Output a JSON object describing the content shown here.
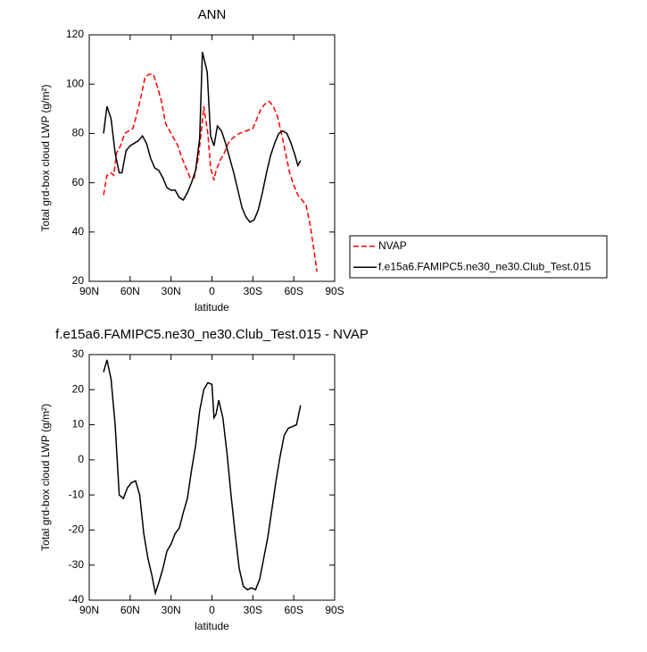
{
  "chart_data": [
    {
      "type": "line",
      "title": "ANN",
      "xlabel": "latitude",
      "ylabel": "Total grd-box cloud LWP (g/m²)",
      "xlim": [
        90,
        -90
      ],
      "xticks": [
        {
          "value": 90,
          "label": "90N"
        },
        {
          "value": 60,
          "label": "60N"
        },
        {
          "value": 30,
          "label": "30N"
        },
        0,
        {
          "value": -30,
          "label": "30S"
        },
        {
          "value": -60,
          "label": "60S"
        },
        {
          "value": -90,
          "label": "90S"
        }
      ],
      "ylim": [
        20,
        120
      ],
      "yticks": [
        20,
        40,
        60,
        80,
        100,
        120
      ],
      "legend": "right",
      "series": [
        {
          "name": "NVAP",
          "color": "#ff0000",
          "line_style": "dashed",
          "x": [
            79.5,
            77,
            74,
            72,
            70,
            67,
            64,
            61,
            58,
            55,
            52,
            49,
            46,
            43,
            40,
            37,
            34,
            31,
            28,
            25,
            22,
            19,
            16,
            13,
            10,
            7,
            6,
            3,
            1,
            -1.5,
            -3,
            -6,
            -9,
            -12,
            -15,
            -20,
            -25,
            -30,
            -33,
            -36,
            -39,
            -42,
            -45,
            -48,
            -51,
            -54,
            -57,
            -60,
            -63,
            -66,
            -69,
            -72,
            -75,
            -77
          ],
          "values": [
            55,
            63,
            64,
            63,
            72,
            75,
            80,
            81,
            82,
            88,
            95,
            103,
            104,
            104,
            99,
            93,
            84,
            81,
            78,
            75,
            70,
            66,
            62,
            62,
            70,
            85,
            91,
            80,
            66,
            61,
            65,
            69,
            72,
            76,
            78,
            80,
            81,
            82,
            86,
            90,
            92,
            93,
            91,
            87,
            80,
            72,
            64,
            59,
            55,
            53,
            51,
            43,
            32,
            24
          ]
        },
        {
          "name": "f.e15a6.FAMIPC5.ne30_ne30.Club_Test.015",
          "color": "#000000",
          "line_style": "solid",
          "x": [
            79.5,
            77,
            74,
            71,
            68,
            66,
            63,
            60,
            57,
            54,
            51,
            48,
            45,
            42,
            39,
            36,
            33,
            30,
            27,
            24,
            21,
            18,
            15,
            12,
            9,
            7,
            3.5,
            1,
            -1.5,
            -4,
            -7,
            -10,
            -13,
            -16,
            -19,
            -22,
            -25,
            -28,
            -31,
            -34,
            -37,
            -40,
            -43,
            -46,
            -49,
            -52,
            -55,
            -58,
            -61,
            -63,
            -65
          ],
          "values": [
            80,
            91,
            86,
            72,
            64,
            64,
            73,
            75,
            76,
            77,
            79,
            76,
            70,
            66,
            65,
            62,
            58,
            57,
            57,
            54,
            53,
            56,
            60,
            65,
            78,
            113,
            105,
            79,
            75,
            83,
            81,
            76,
            70,
            64,
            57,
            50,
            46,
            44,
            45,
            49,
            56,
            64,
            71,
            76,
            80,
            81,
            80,
            76,
            71,
            67,
            69
          ]
        }
      ]
    },
    {
      "type": "line",
      "title": "f.e15a6.FAMIPC5.ne30_ne30.Club_Test.015 - NVAP",
      "xlabel": "latitude",
      "ylabel": "Total grd-box cloud LWP (g/m²)",
      "xlim": [
        90,
        -90
      ],
      "xticks": [
        {
          "value": 90,
          "label": "90N"
        },
        {
          "value": 60,
          "label": "60N"
        },
        {
          "value": 30,
          "label": "30N"
        },
        0,
        {
          "value": -30,
          "label": "30S"
        },
        {
          "value": -60,
          "label": "60S"
        },
        {
          "value": -90,
          "label": "90S"
        }
      ],
      "ylim": [
        -40,
        30
      ],
      "yticks": [
        -40,
        -30,
        -20,
        -10,
        0,
        10,
        20,
        30
      ],
      "series": [
        {
          "color": "#000000",
          "line_style": "solid",
          "x": [
            79.5,
            77,
            74,
            71,
            68,
            65,
            62,
            59,
            56,
            53,
            50,
            47,
            44,
            41.5,
            39,
            36,
            33,
            30,
            27,
            24,
            21,
            18,
            15,
            12,
            9,
            6,
            3,
            0,
            -1.5,
            -3,
            -5,
            -8,
            -11,
            -14,
            -17,
            -20,
            -23,
            -26,
            -29,
            -32,
            -35,
            -38,
            -41,
            -44,
            -47,
            -50,
            -53,
            -56,
            -59,
            -62,
            -65
          ],
          "values": [
            25,
            28.5,
            23,
            10,
            -10,
            -11,
            -8,
            -6.5,
            -6,
            -10,
            -21,
            -28,
            -33,
            -38,
            -35,
            -31,
            -26,
            -24,
            -21,
            -19.5,
            -15,
            -11,
            -3,
            4,
            14,
            20,
            22,
            21.5,
            12,
            13,
            17,
            12,
            2,
            -10,
            -21,
            -31,
            -36,
            -37,
            -36.5,
            -37,
            -34,
            -28,
            -22,
            -14,
            -6,
            1,
            7,
            9,
            9.5,
            10,
            15.5
          ]
        }
      ]
    }
  ]
}
